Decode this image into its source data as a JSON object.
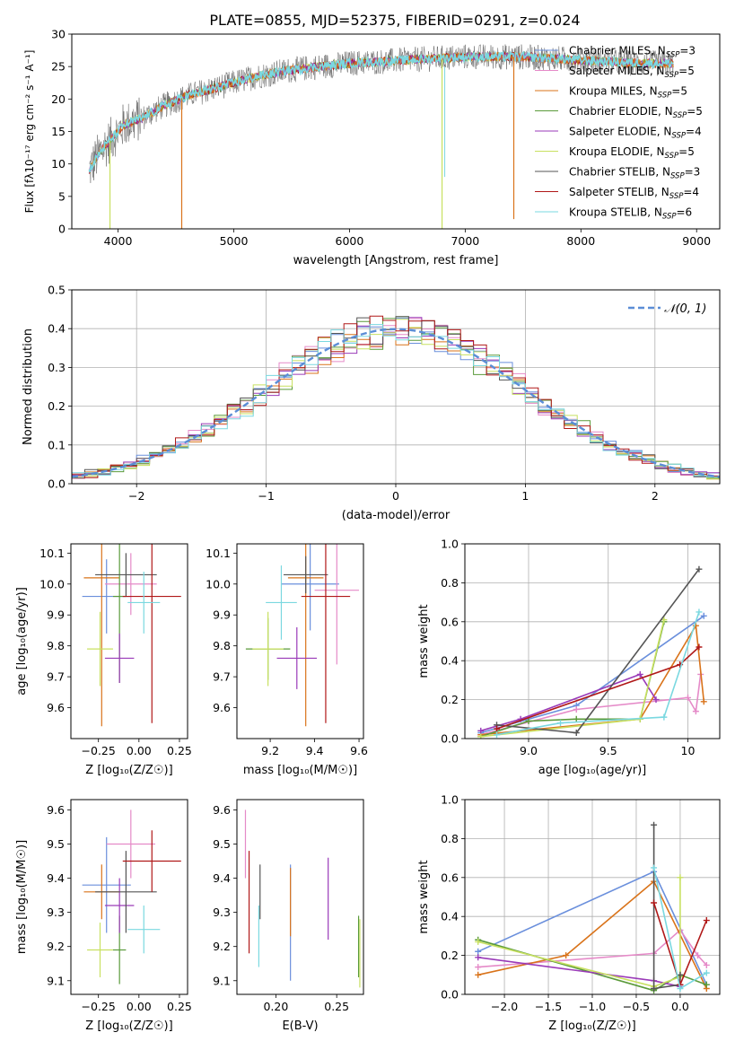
{
  "figure": {
    "title": "PLATE=0855, MJD=52375, FIBERID=0291, z=0.024"
  },
  "colors": {
    "chabrier_miles": "#6a8fdc",
    "salpeter_miles": "#e58ac8",
    "kroupa_miles": "#d9731a",
    "chabrier_elodie": "#5a9a3a",
    "salpeter_elodie": "#9a3ab8",
    "kroupa_elodie": "#c8e060",
    "chabrier_stelib": "#555555",
    "salpeter_stelib": "#b01818",
    "kroupa_stelib": "#7ad8e0",
    "normal_line": "#5b8dd6",
    "grid": "#b0b0b0"
  },
  "chart_data": [
    {
      "id": "spectrum",
      "type": "line",
      "title": "PLATE=0855, MJD=52375, FIBERID=0291, z=0.024",
      "xlabel": "wavelength [Angstrom, rest frame]",
      "ylabel": "Flux [fλ10⁻¹⁷ erg cm⁻² s⁻¹ A⁻¹]",
      "xlim": [
        3600,
        9200
      ],
      "ylim": [
        0,
        30
      ],
      "xticks": [
        4000,
        5000,
        6000,
        7000,
        8000,
        9000
      ],
      "yticks": [
        0,
        5,
        10,
        15,
        20,
        25,
        30
      ],
      "grid": false,
      "legend_position": "top-right",
      "legend": [
        {
          "label": "Chabrier MILES, N",
          "sub": "SSP",
          "suffix": "=3",
          "color": "#6a8fdc"
        },
        {
          "label": "Salpeter MILES, N",
          "sub": "SSP",
          "suffix": "=5",
          "color": "#e58ac8"
        },
        {
          "label": "Kroupa MILES, N",
          "sub": "SSP",
          "suffix": "=5",
          "color": "#d9731a"
        },
        {
          "label": "Chabrier ELODIE, N",
          "sub": "SSP",
          "suffix": "=5",
          "color": "#5a9a3a"
        },
        {
          "label": "Salpeter ELODIE, N",
          "sub": "SSP",
          "suffix": "=4",
          "color": "#9a3ab8"
        },
        {
          "label": "Kroupa ELODIE, N",
          "sub": "SSP",
          "suffix": "=5",
          "color": "#c8e060"
        },
        {
          "label": "Chabrier STELIB, N",
          "sub": "SSP",
          "suffix": "=3",
          "color": "#555555"
        },
        {
          "label": "Salpeter STELIB, N",
          "sub": "SSP",
          "suffix": "=4",
          "color": "#b01818"
        },
        {
          "label": "Kroupa STELIB, N",
          "sub": "SSP",
          "suffix": "=6",
          "color": "#7ad8e0"
        }
      ],
      "continuum": {
        "x": [
          3750,
          3850,
          3950,
          4050,
          4200,
          4400,
          4600,
          4800,
          5000,
          5200,
          5500,
          6000,
          6500,
          7000,
          7500,
          8000,
          8500,
          8800
        ],
        "y": [
          9,
          12,
          14,
          16,
          17,
          19,
          20.5,
          21.5,
          22.5,
          23.5,
          24.5,
          25.5,
          26,
          26.5,
          26.5,
          26,
          25.5,
          25.5
        ]
      },
      "spikes": [
        {
          "x": 3930,
          "y": 0
        },
        {
          "x": 4550,
          "y": 0
        },
        {
          "x": 6800,
          "y": 0
        },
        {
          "x": 7420,
          "y": 1.5
        }
      ]
    },
    {
      "id": "residuals",
      "type": "histogram",
      "xlabel": "(data-model)/error",
      "ylabel": "Normed distribution",
      "xlim": [
        -2.5,
        2.5
      ],
      "ylim": [
        0,
        0.5
      ],
      "xticks": [
        -2,
        -1,
        0,
        1,
        2
      ],
      "yticks": [
        0.0,
        0.1,
        0.2,
        0.3,
        0.4,
        0.5
      ],
      "grid": true,
      "legend_position": "top-right",
      "legend": [
        {
          "label": "𝒩(0, 1)",
          "style": "dashed"
        }
      ],
      "bin_width": 0.1,
      "normal_curve": {
        "mean": 0,
        "sigma": 1
      }
    },
    {
      "id": "age_vs_Z",
      "type": "errorbar",
      "xlabel": "Z [log₁₀(Z/Z☉)]",
      "ylabel": "age  [log₁₀(age/yr)]",
      "xlim": [
        -0.42,
        0.3
      ],
      "ylim": [
        9.5,
        10.13
      ],
      "xticks": [
        -0.25,
        0.0,
        0.25
      ],
      "yticks": [
        9.6,
        9.7,
        9.8,
        9.9,
        10.0,
        10.1
      ],
      "points": [
        {
          "model": "chabrier_miles",
          "x": -0.2,
          "xerr": 0.15,
          "y": 9.96,
          "yerr": 0.12
        },
        {
          "model": "salpeter_miles",
          "x": -0.05,
          "xerr": 0.16,
          "y": 10.0,
          "yerr": 0.1
        },
        {
          "model": "kroupa_miles",
          "x": -0.23,
          "xerr": 0.11,
          "y": 10.02,
          "yerr": 0.48
        },
        {
          "model": "chabrier_elodie",
          "x": -0.12,
          "xerr": 0.04,
          "y": 9.96,
          "yerr": 0.28
        },
        {
          "model": "salpeter_elodie",
          "x": -0.12,
          "xerr": 0.09,
          "y": 9.76,
          "yerr": 0.08
        },
        {
          "model": "kroupa_elodie",
          "x": -0.24,
          "xerr": 0.08,
          "y": 9.79,
          "yerr": 0.12
        },
        {
          "model": "chabrier_stelib",
          "x": -0.08,
          "xerr": 0.19,
          "y": 10.03,
          "yerr": 0.07
        },
        {
          "model": "salpeter_stelib",
          "x": 0.08,
          "xerr": 0.18,
          "y": 9.96,
          "yerr": 0.41
        },
        {
          "model": "kroupa_stelib",
          "x": 0.03,
          "xerr": 0.1,
          "y": 9.94,
          "yerr": 0.1
        }
      ]
    },
    {
      "id": "age_vs_mass",
      "type": "errorbar",
      "xlabel": "mass [log₁₀(M/M☉)]",
      "ylabel": "",
      "xlim": [
        9.05,
        9.62
      ],
      "ylim": [
        9.5,
        10.13
      ],
      "xticks": [
        9.2,
        9.4,
        9.6
      ],
      "yticks": [
        9.6,
        9.7,
        9.8,
        9.9,
        10.0,
        10.1
      ],
      "points": [
        {
          "model": "chabrier_miles",
          "x": 9.38,
          "xerr": 0.13,
          "y": 10.0,
          "yerr": 0.15
        },
        {
          "model": "salpeter_miles",
          "x": 9.5,
          "xerr": 0.1,
          "y": 9.98,
          "yerr": 0.24
        },
        {
          "model": "kroupa_miles",
          "x": 9.36,
          "xerr": 0.08,
          "y": 10.02,
          "yerr": 0.48
        },
        {
          "model": "chabrier_elodie",
          "x": 9.19,
          "xerr": 0.1,
          "y": 9.79,
          "yerr": 0.1
        },
        {
          "model": "salpeter_elodie",
          "x": 9.32,
          "xerr": 0.09,
          "y": 9.76,
          "yerr": 0.1
        },
        {
          "model": "kroupa_elodie",
          "x": 9.19,
          "xerr": 0.07,
          "y": 9.79,
          "yerr": 0.12
        },
        {
          "model": "chabrier_stelib",
          "x": 9.36,
          "xerr": 0.1,
          "y": 10.03,
          "yerr": 0.06
        },
        {
          "model": "salpeter_stelib",
          "x": 9.45,
          "xerr": 0.11,
          "y": 9.96,
          "yerr": 0.41
        },
        {
          "model": "kroupa_stelib",
          "x": 9.25,
          "xerr": 0.07,
          "y": 9.94,
          "yerr": 0.12
        }
      ]
    },
    {
      "id": "weight_vs_age",
      "type": "line",
      "xlabel": "age  [log₁₀(age/yr)]",
      "ylabel": "mass weight",
      "xlim": [
        8.6,
        10.2
      ],
      "ylim": [
        0,
        1.0
      ],
      "xticks": [
        9.0,
        9.5,
        10.0
      ],
      "yticks": [
        0.0,
        0.2,
        0.4,
        0.6,
        0.8,
        1.0
      ],
      "grid": true,
      "series": [
        {
          "model": "chabrier_miles",
          "x": [
            8.7,
            9.3,
            10.1
          ],
          "y": [
            0.03,
            0.17,
            0.63
          ]
        },
        {
          "model": "salpeter_miles",
          "x": [
            8.7,
            9.3,
            10.0,
            10.05,
            10.08
          ],
          "y": [
            0.02,
            0.15,
            0.21,
            0.14,
            0.33
          ]
        },
        {
          "model": "kroupa_miles",
          "x": [
            8.7,
            9.7,
            10.05,
            10.1
          ],
          "y": [
            0.02,
            0.1,
            0.58,
            0.19
          ]
        },
        {
          "model": "chabrier_elodie",
          "x": [
            8.7,
            9.0,
            9.3,
            9.7,
            9.85
          ],
          "y": [
            0.01,
            0.09,
            0.1,
            0.1,
            0.6
          ]
        },
        {
          "model": "salpeter_elodie",
          "x": [
            8.7,
            8.95,
            9.7,
            9.8
          ],
          "y": [
            0.04,
            0.1,
            0.33,
            0.2
          ]
        },
        {
          "model": "kroupa_elodie",
          "x": [
            8.7,
            9.7,
            9.85
          ],
          "y": [
            0.01,
            0.1,
            0.61
          ]
        },
        {
          "model": "chabrier_stelib",
          "x": [
            8.8,
            9.3,
            10.07
          ],
          "y": [
            0.07,
            0.03,
            0.87
          ]
        },
        {
          "model": "salpeter_stelib",
          "x": [
            8.8,
            9.95,
            10.07
          ],
          "y": [
            0.05,
            0.38,
            0.47
          ]
        },
        {
          "model": "kroupa_stelib",
          "x": [
            8.8,
            9.2,
            9.85,
            10.07
          ],
          "y": [
            0.02,
            0.08,
            0.11,
            0.65
          ]
        }
      ]
    },
    {
      "id": "mass_vs_Z",
      "type": "errorbar",
      "xlabel": "Z [log₁₀(Z/Z☉)]",
      "ylabel": "mass [log₁₀(M/M☉)]",
      "xlim": [
        -0.42,
        0.3
      ],
      "ylim": [
        9.06,
        9.63
      ],
      "xticks": [
        -0.25,
        0.0,
        0.25
      ],
      "yticks": [
        9.1,
        9.2,
        9.3,
        9.4,
        9.5,
        9.6
      ],
      "points": [
        {
          "model": "chabrier_miles",
          "x": -0.2,
          "xerr": 0.15,
          "y": 9.38,
          "yerr": 0.14
        },
        {
          "model": "salpeter_miles",
          "x": -0.05,
          "xerr": 0.15,
          "y": 9.5,
          "yerr": 0.1
        },
        {
          "model": "kroupa_miles",
          "x": -0.23,
          "xerr": 0.11,
          "y": 9.36,
          "yerr": 0.08
        },
        {
          "model": "chabrier_elodie",
          "x": -0.12,
          "xerr": 0.04,
          "y": 9.19,
          "yerr": 0.1
        },
        {
          "model": "salpeter_elodie",
          "x": -0.12,
          "xerr": 0.09,
          "y": 9.32,
          "yerr": 0.08
        },
        {
          "model": "kroupa_elodie",
          "x": -0.24,
          "xerr": 0.08,
          "y": 9.19,
          "yerr": 0.08
        },
        {
          "model": "chabrier_stelib",
          "x": -0.08,
          "xerr": 0.19,
          "y": 9.36,
          "yerr": 0.12
        },
        {
          "model": "salpeter_stelib",
          "x": 0.08,
          "xerr": 0.18,
          "y": 9.45,
          "yerr": 0.09
        },
        {
          "model": "kroupa_stelib",
          "x": 0.03,
          "xerr": 0.1,
          "y": 9.25,
          "yerr": 0.07
        }
      ]
    },
    {
      "id": "mass_vs_ebv",
      "type": "errorbar",
      "xlabel": "E(B-V)",
      "ylabel": "",
      "xlim": [
        0.168,
        0.272
      ],
      "ylim": [
        9.06,
        9.63
      ],
      "xticks": [
        0.2,
        0.25
      ],
      "yticks": [
        9.1,
        9.2,
        9.3,
        9.4,
        9.5,
        9.6
      ],
      "points": [
        {
          "model": "chabrier_miles",
          "x": 0.212,
          "y": 9.27,
          "yerr": 0.17
        },
        {
          "model": "salpeter_miles",
          "x": 0.175,
          "y": 9.5,
          "yerr": 0.1
        },
        {
          "model": "kroupa_miles",
          "x": 0.212,
          "y": 9.33,
          "yerr": 0.1
        },
        {
          "model": "chabrier_elodie",
          "x": 0.268,
          "y": 9.2,
          "yerr": 0.09
        },
        {
          "model": "salpeter_elodie",
          "x": 0.243,
          "y": 9.34,
          "yerr": 0.12
        },
        {
          "model": "kroupa_elodie",
          "x": 0.269,
          "y": 9.18,
          "yerr": 0.1
        },
        {
          "model": "chabrier_stelib",
          "x": 0.187,
          "y": 9.36,
          "yerr": 0.08
        },
        {
          "model": "salpeter_stelib",
          "x": 0.178,
          "y": 9.33,
          "yerr": 0.15
        },
        {
          "model": "kroupa_stelib",
          "x": 0.186,
          "y": 9.23,
          "yerr": 0.09
        }
      ]
    },
    {
      "id": "weight_vs_Z",
      "type": "line",
      "xlabel": "Z [log₁₀(Z/Z☉)]",
      "ylabel": "mass weight",
      "xlim": [
        -2.45,
        0.45
      ],
      "ylim": [
        0,
        1.0
      ],
      "xticks": [
        -2.0,
        -1.5,
        -1.0,
        -0.5,
        0.0
      ],
      "yticks": [
        0.0,
        0.2,
        0.4,
        0.6,
        0.8,
        1.0
      ],
      "grid": true,
      "series": [
        {
          "model": "chabrier_miles",
          "x": [
            -2.3,
            -0.3,
            0.3
          ],
          "y": [
            0.22,
            0.63,
            0.05
          ]
        },
        {
          "model": "salpeter_miles",
          "x": [
            -2.3,
            -0.3,
            0.0,
            0.2,
            0.3
          ],
          "y": [
            0.14,
            0.21,
            0.33,
            0.2,
            0.15
          ]
        },
        {
          "model": "kroupa_miles",
          "x": [
            -2.3,
            -1.3,
            -0.3,
            0.3
          ],
          "y": [
            0.1,
            0.2,
            0.58,
            0.03
          ]
        },
        {
          "model": "chabrier_elodie",
          "x": [
            -2.3,
            -0.3,
            0.0,
            0.3
          ],
          "y": [
            0.28,
            0.02,
            0.1,
            0.05
          ]
        },
        {
          "model": "salpeter_elodie",
          "x": [
            -2.3,
            -0.3,
            0.0
          ],
          "y": [
            0.19,
            0.07,
            0.04
          ]
        },
        {
          "model": "kroupa_elodie",
          "x": [
            -2.3,
            -0.3,
            0.0,
            0.0
          ],
          "y": [
            0.27,
            0.04,
            0.09,
            0.6
          ]
        },
        {
          "model": "chabrier_stelib",
          "x": [
            -0.3,
            -0.3,
            0.0,
            0.0
          ],
          "y": [
            0.87,
            0.03,
            0.05,
            0.1
          ]
        },
        {
          "model": "salpeter_stelib",
          "x": [
            -0.3,
            0.0,
            0.3
          ],
          "y": [
            0.47,
            0.05,
            0.38
          ]
        },
        {
          "model": "kroupa_stelib",
          "x": [
            -0.3,
            0.0,
            0.3
          ],
          "y": [
            0.65,
            0.03,
            0.11
          ]
        }
      ]
    }
  ]
}
